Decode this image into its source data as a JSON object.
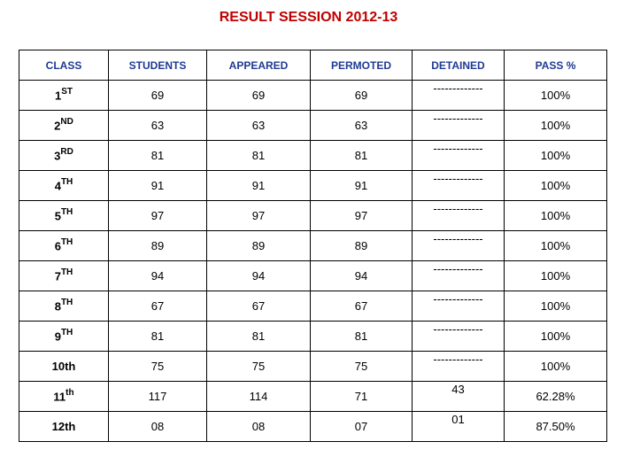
{
  "title": "RESULT SESSION 2012-13",
  "headers": [
    "CLASS",
    "STUDENTS",
    "APPEARED",
    "PERMOTED",
    "DETAINED",
    "PASS %"
  ],
  "rows": [
    {
      "class": "1",
      "suffix": "ST",
      "students": "69",
      "appeared": "69",
      "permoted": "69",
      "detained": "-------------",
      "pass": "100%"
    },
    {
      "class": "2",
      "suffix": "ND",
      "students": "63",
      "appeared": "63",
      "permoted": "63",
      "detained": "-------------",
      "pass": "100%"
    },
    {
      "class": "3",
      "suffix": "RD",
      "students": "81",
      "appeared": "81",
      "permoted": "81",
      "detained": "-------------",
      "pass": "100%"
    },
    {
      "class": "4",
      "suffix": "TH",
      "students": "91",
      "appeared": "91",
      "permoted": "91",
      "detained": "-------------",
      "pass": "100%"
    },
    {
      "class": "5",
      "suffix": "TH",
      "students": "97",
      "appeared": "97",
      "permoted": "97",
      "detained": "-------------",
      "pass": "100%"
    },
    {
      "class": "6",
      "suffix": "TH",
      "students": "89",
      "appeared": "89",
      "permoted": "89",
      "detained": "-------------",
      "pass": "100%"
    },
    {
      "class": "7",
      "suffix": "TH",
      "students": "94",
      "appeared": "94",
      "permoted": "94",
      "detained": "-------------",
      "pass": "100%"
    },
    {
      "class": "8",
      "suffix": "TH",
      "students": "67",
      "appeared": "67",
      "permoted": "67",
      "detained": "-------------",
      "pass": "100%"
    },
    {
      "class": "9",
      "suffix": "TH",
      "students": "81",
      "appeared": "81",
      "permoted": "81",
      "detained": "-------------",
      "pass": "100%"
    },
    {
      "class": "10th",
      "suffix": "",
      "students": "75",
      "appeared": "75",
      "permoted": "75",
      "detained": "-------------",
      "pass": "100%"
    },
    {
      "class": "11",
      "suffix": "th",
      "students": "117",
      "appeared": "114",
      "permoted": "71",
      "detained": "43",
      "pass": "62.28%"
    },
    {
      "class": "12th",
      "suffix": "",
      "students": "08",
      "appeared": "08",
      "permoted": "07",
      "detained": "01",
      "pass": "87.50%"
    }
  ]
}
